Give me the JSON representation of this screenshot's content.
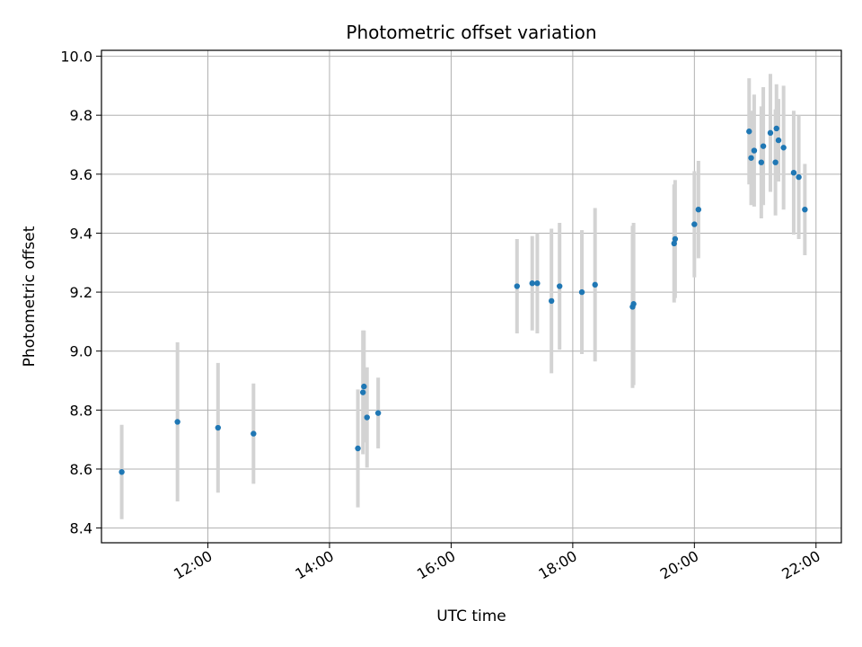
{
  "chart_data": {
    "type": "scatter",
    "title": "Photometric offset variation",
    "xlabel": "UTC time",
    "ylabel": "Photometric offset",
    "x_axis": "time",
    "xlim": [
      "10:15",
      "22:25"
    ],
    "ylim": [
      8.35,
      10.02
    ],
    "x_ticks": [
      "12:00",
      "14:00",
      "16:00",
      "18:00",
      "20:00",
      "22:00"
    ],
    "y_ticks": [
      "8.4",
      "8.6",
      "8.8",
      "9.0",
      "9.2",
      "9.4",
      "9.6",
      "9.8",
      "10.0"
    ],
    "grid": true,
    "marker_color": "#1f77b4",
    "errorbar_color": "#d3d3d3",
    "points": [
      {
        "time": "10:35",
        "y": 8.59,
        "err": 0.16
      },
      {
        "time": "11:30",
        "y": 8.76,
        "err": 0.27
      },
      {
        "time": "12:10",
        "y": 8.74,
        "err": 0.22
      },
      {
        "time": "12:45",
        "y": 8.72,
        "err": 0.17
      },
      {
        "time": "14:28",
        "y": 8.67,
        "err": 0.2
      },
      {
        "time": "14:33",
        "y": 8.86,
        "err": 0.21
      },
      {
        "time": "14:34",
        "y": 8.88,
        "err": 0.19
      },
      {
        "time": "14:37",
        "y": 8.775,
        "err": 0.17
      },
      {
        "time": "14:48",
        "y": 8.79,
        "err": 0.12
      },
      {
        "time": "17:05",
        "y": 9.22,
        "err": 0.16
      },
      {
        "time": "17:20",
        "y": 9.23,
        "err": 0.16
      },
      {
        "time": "17:25",
        "y": 9.23,
        "err": 0.17
      },
      {
        "time": "17:39",
        "y": 9.17,
        "err": 0.245
      },
      {
        "time": "17:47",
        "y": 9.22,
        "err": 0.215
      },
      {
        "time": "18:09",
        "y": 9.2,
        "err": 0.21
      },
      {
        "time": "18:22",
        "y": 9.225,
        "err": 0.26
      },
      {
        "time": "18:59",
        "y": 9.15,
        "err": 0.275
      },
      {
        "time": "19:00",
        "y": 9.16,
        "err": 0.275
      },
      {
        "time": "19:40",
        "y": 9.365,
        "err": 0.2
      },
      {
        "time": "19:41",
        "y": 9.38,
        "err": 0.2
      },
      {
        "time": "20:00",
        "y": 9.43,
        "err": 0.18
      },
      {
        "time": "20:04",
        "y": 9.48,
        "err": 0.165
      },
      {
        "time": "20:54",
        "y": 9.745,
        "err": 0.18
      },
      {
        "time": "20:56",
        "y": 9.655,
        "err": 0.16
      },
      {
        "time": "20:59",
        "y": 9.68,
        "err": 0.19
      },
      {
        "time": "21:06",
        "y": 9.64,
        "err": 0.19
      },
      {
        "time": "21:08",
        "y": 9.695,
        "err": 0.2
      },
      {
        "time": "21:15",
        "y": 9.74,
        "err": 0.2
      },
      {
        "time": "21:20",
        "y": 9.64,
        "err": 0.18
      },
      {
        "time": "21:21",
        "y": 9.755,
        "err": 0.15
      },
      {
        "time": "21:23",
        "y": 9.715,
        "err": 0.14
      },
      {
        "time": "21:28",
        "y": 9.69,
        "err": 0.21
      },
      {
        "time": "21:38",
        "y": 9.605,
        "err": 0.21
      },
      {
        "time": "21:43",
        "y": 9.59,
        "err": 0.21
      },
      {
        "time": "21:49",
        "y": 9.48,
        "err": 0.155
      }
    ]
  }
}
